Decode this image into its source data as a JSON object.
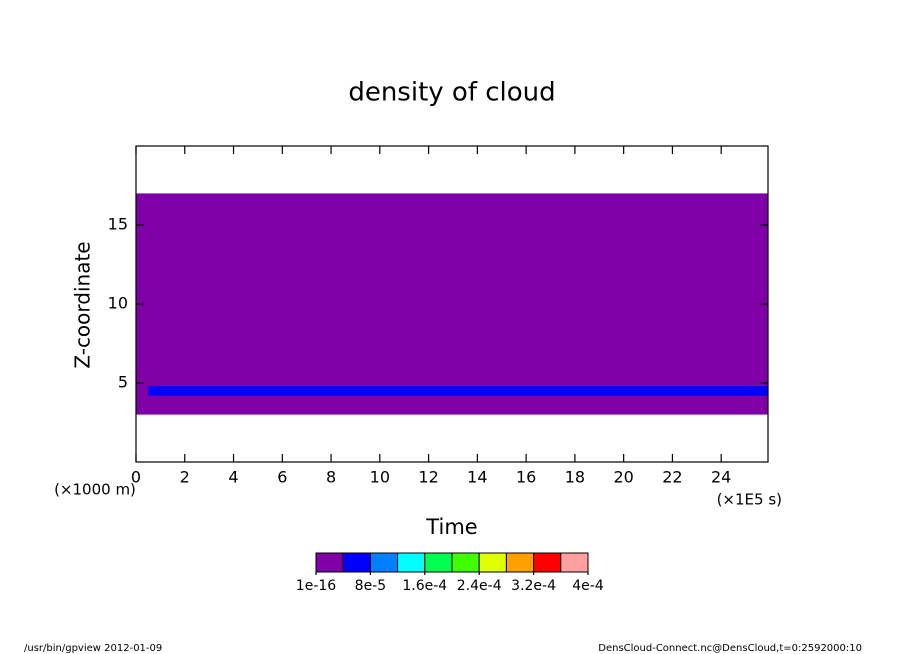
{
  "chart_data": {
    "type": "contour",
    "title": "density of cloud",
    "x_label": "Time",
    "x_unit": "(×1E5 s)",
    "y_label": "Z-coordinate",
    "y_unit": "(×1000 m)",
    "xlim": [
      0,
      25.92
    ],
    "ylim": [
      0,
      20
    ],
    "xticks": [
      0,
      2,
      4,
      6,
      8,
      10,
      12,
      14,
      16,
      18,
      20,
      22,
      24
    ],
    "yticks": [
      5,
      10,
      15
    ],
    "regions": [
      {
        "x": [
          0,
          25.92
        ],
        "z": [
          3,
          17
        ],
        "color": "#8000a8"
      },
      {
        "x": [
          0.5,
          25.92
        ],
        "z": [
          4.2,
          4.8
        ],
        "color": "#0000ff"
      }
    ],
    "colorbar": {
      "clim": [
        0,
        0.0004
      ],
      "colors": [
        "#8000a8",
        "#0000ff",
        "#0080ff",
        "#00ffff",
        "#00ff50",
        "#40ff00",
        "#e0ff00",
        "#ffa000",
        "#ff0000",
        "#ffa0a0"
      ],
      "ticks": [
        {
          "value": 1e-16,
          "label": "1e-16"
        },
        {
          "value": 8e-05,
          "label": "8e-5"
        },
        {
          "value": 0.00016,
          "label": "1.6e-4"
        },
        {
          "value": 0.00024,
          "label": "2.4e-4"
        },
        {
          "value": 0.00032,
          "label": "3.2e-4"
        },
        {
          "value": 0.0004,
          "label": "4e-4"
        }
      ]
    }
  },
  "footer": {
    "left": "/usr/bin/gpview  2012-01-09",
    "right": "DensCloud-Connect.nc@DensCloud,t=0:2592000:10"
  }
}
